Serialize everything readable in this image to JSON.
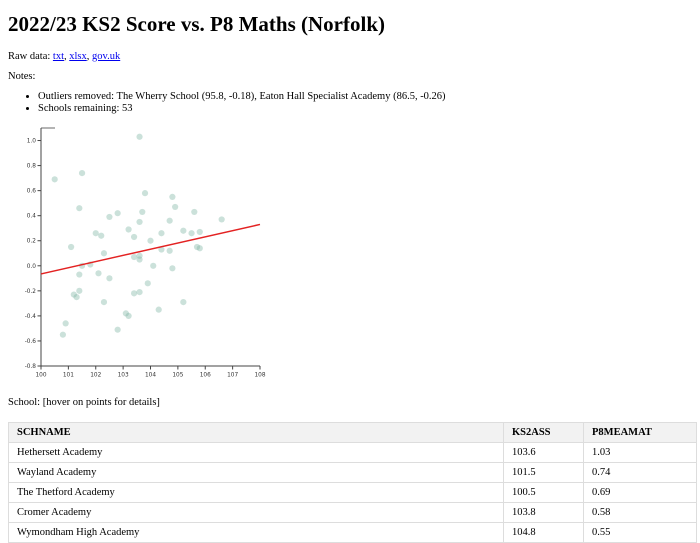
{
  "page": {
    "title": "2022/23 KS2 Score vs. P8 Maths (Norfolk)",
    "raw_data_label": "Raw data: ",
    "links": [
      {
        "label": "txt"
      },
      {
        "label": "xlsx"
      },
      {
        "label": "gov.uk"
      }
    ],
    "notes_label": "Notes:",
    "notes": [
      "Outliers removed: The Wherry School (95.8, -0.18), Eaton Hall Specialist Academy (86.5, -0.26)",
      "Schools remaining: 53"
    ],
    "school_hover_label": "School: [hover on points for details]",
    "link_color": "#0000EE"
  },
  "chart_data": {
    "type": "scatter",
    "title": "",
    "xlabel": "",
    "ylabel": "",
    "xlim": [
      100,
      108
    ],
    "ylim": [
      -0.8,
      1.1
    ],
    "x_ticks": [
      100,
      101,
      102,
      103,
      104,
      105,
      106,
      107,
      108
    ],
    "y_ticks": [
      1.0,
      0.8,
      0.6,
      0.4,
      0.2,
      0.0,
      -0.2,
      -0.4,
      -0.6,
      -0.8
    ],
    "grid": false,
    "legend": false,
    "marker_color": "rgba(125,180,162,0.4)",
    "axis_color": "#444444",
    "points": [
      [
        103.6,
        1.03
      ],
      [
        101.5,
        0.74
      ],
      [
        100.5,
        0.69
      ],
      [
        103.8,
        0.58
      ],
      [
        104.8,
        0.55
      ],
      [
        104.9,
        0.47
      ],
      [
        101.4,
        0.46
      ],
      [
        105.6,
        0.43
      ],
      [
        103.7,
        0.43
      ],
      [
        102.8,
        0.42
      ],
      [
        102.5,
        0.39
      ],
      [
        106.6,
        0.37
      ],
      [
        104.7,
        0.36
      ],
      [
        103.6,
        0.35
      ],
      [
        103.2,
        0.29
      ],
      [
        105.2,
        0.28
      ],
      [
        105.8,
        0.27
      ],
      [
        102.0,
        0.26
      ],
      [
        104.4,
        0.26
      ],
      [
        105.5,
        0.26
      ],
      [
        102.2,
        0.24
      ],
      [
        103.4,
        0.23
      ],
      [
        104.0,
        0.2
      ],
      [
        101.1,
        0.15
      ],
      [
        105.7,
        0.15
      ],
      [
        105.8,
        0.14
      ],
      [
        104.4,
        0.13
      ],
      [
        104.7,
        0.12
      ],
      [
        102.3,
        0.1
      ],
      [
        103.6,
        0.08
      ],
      [
        103.4,
        0.07
      ],
      [
        103.6,
        0.05
      ],
      [
        101.5,
        0.0
      ],
      [
        101.8,
        0.01
      ],
      [
        104.1,
        0.0
      ],
      [
        101.4,
        -0.07
      ],
      [
        102.1,
        -0.06
      ],
      [
        104.8,
        -0.02
      ],
      [
        102.5,
        -0.1
      ],
      [
        103.9,
        -0.14
      ],
      [
        101.4,
        -0.2
      ],
      [
        101.2,
        -0.23
      ],
      [
        101.3,
        -0.25
      ],
      [
        102.3,
        -0.29
      ],
      [
        103.4,
        -0.22
      ],
      [
        103.6,
        -0.21
      ],
      [
        105.2,
        -0.29
      ],
      [
        103.1,
        -0.38
      ],
      [
        104.3,
        -0.35
      ],
      [
        103.2,
        -0.4
      ],
      [
        100.9,
        -0.46
      ],
      [
        102.8,
        -0.51
      ],
      [
        100.8,
        -0.55
      ]
    ],
    "trend_line": {
      "x1": 100,
      "y1": -0.065,
      "x2": 108,
      "y2": 0.33,
      "color": "#e32222"
    }
  },
  "table": {
    "columns": [
      "SCHNAME",
      "KS2ASS",
      "P8MEAMAT"
    ],
    "rows": [
      [
        "Hethersett Academy",
        "103.6",
        "1.03"
      ],
      [
        "Wayland Academy",
        "101.5",
        "0.74"
      ],
      [
        "The Thetford Academy",
        "100.5",
        "0.69"
      ],
      [
        "Cromer Academy",
        "103.8",
        "0.58"
      ],
      [
        "Wymondham High Academy",
        "104.8",
        "0.55"
      ]
    ]
  }
}
